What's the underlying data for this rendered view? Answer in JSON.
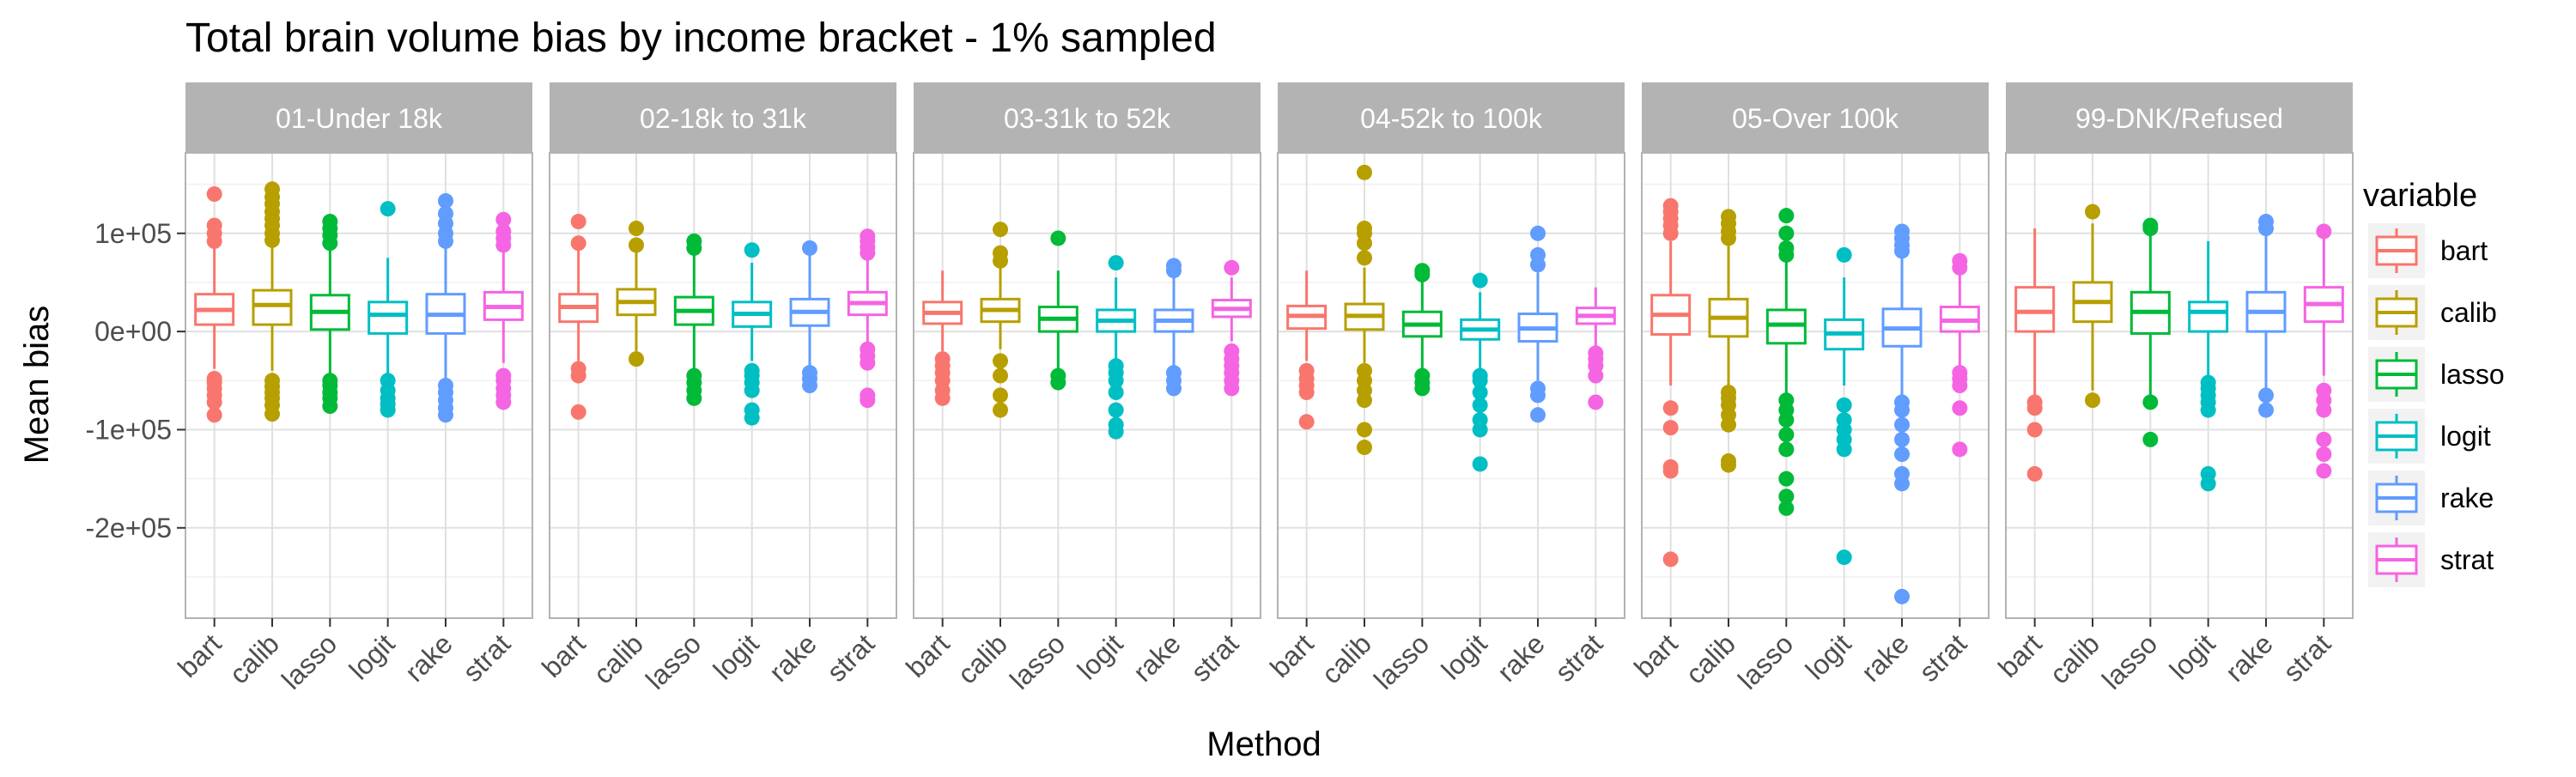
{
  "chart_data": {
    "type": "box",
    "title": "Total brain volume bias by income bracket - 1% sampled",
    "xlabel": "Method",
    "ylabel": "Mean bias",
    "ylim": [
      -292000,
      182000
    ],
    "yticks": [
      {
        "value": 100000,
        "label": "1e+05"
      },
      {
        "value": 0,
        "label": "0e+00"
      },
      {
        "value": -100000,
        "label": "-1e+05"
      },
      {
        "value": -200000,
        "label": "-2e+05"
      }
    ],
    "grid": true,
    "legend_title": "variable",
    "legend_position": "right",
    "categories": [
      "bart",
      "calib",
      "lasso",
      "logit",
      "rake",
      "strat"
    ],
    "colors": {
      "bart": "#F8766D",
      "calib": "#B79F00",
      "lasso": "#00BA38",
      "logit": "#00BFC4",
      "rake": "#619CFF",
      "strat": "#F564E3"
    },
    "facets": [
      {
        "label": "01-Under 18k",
        "boxes": [
          {
            "method": "bart",
            "q1": 7000,
            "median": 22000,
            "q3": 38000,
            "wlo": -38000,
            "whi": 85000,
            "outliers": [
              -85000,
              -72000,
              -65000,
              -58000,
              -52000,
              -48000,
              92000,
              100000,
              108000,
              140000
            ]
          },
          {
            "method": "calib",
            "q1": 7000,
            "median": 27000,
            "q3": 42000,
            "wlo": -40000,
            "whi": 88000,
            "outliers": [
              -84000,
              -75000,
              -68000,
              -62000,
              -56000,
              -50000,
              93000,
              100000,
              108000,
              115000,
              122000,
              130000,
              137000,
              145000
            ]
          },
          {
            "method": "lasso",
            "q1": 2000,
            "median": 20000,
            "q3": 37000,
            "wlo": -45000,
            "whi": 83000,
            "outliers": [
              -76000,
              -68000,
              -62000,
              -55000,
              -50000,
              90000,
              98000,
              105000,
              112000
            ]
          },
          {
            "method": "logit",
            "q1": -2000,
            "median": 17000,
            "q3": 30000,
            "wlo": -45000,
            "whi": 75000,
            "outliers": [
              -80000,
              -74000,
              -68000,
              -60000,
              -50000,
              125000
            ]
          },
          {
            "method": "rake",
            "q1": -2000,
            "median": 17000,
            "q3": 38000,
            "wlo": -50000,
            "whi": 85000,
            "outliers": [
              -85000,
              -78000,
              -70000,
              -62000,
              -55000,
              92000,
              100000,
              110000,
              120000,
              133000
            ]
          },
          {
            "method": "strat",
            "q1": 12000,
            "median": 25000,
            "q3": 40000,
            "wlo": -32000,
            "whi": 82000,
            "outliers": [
              -72000,
              -65000,
              -58000,
              -50000,
              -45000,
              88000,
              95000,
              102000,
              114000
            ]
          }
        ]
      },
      {
        "label": "02-18k to 31k",
        "boxes": [
          {
            "method": "bart",
            "q1": 10000,
            "median": 25000,
            "q3": 38000,
            "wlo": -30000,
            "whi": 85000,
            "outliers": [
              -82000,
              -45000,
              -38000,
              90000,
              112000
            ]
          },
          {
            "method": "calib",
            "q1": 17000,
            "median": 30000,
            "q3": 43000,
            "wlo": -20000,
            "whi": 85000,
            "outliers": [
              -28000,
              88000,
              105000
            ]
          },
          {
            "method": "lasso",
            "q1": 7000,
            "median": 21000,
            "q3": 35000,
            "wlo": -38000,
            "whi": 78000,
            "outliers": [
              -68000,
              -60000,
              -52000,
              -45000,
              85000,
              92000
            ]
          },
          {
            "method": "logit",
            "q1": 5000,
            "median": 18000,
            "q3": 30000,
            "wlo": -30000,
            "whi": 70000,
            "outliers": [
              -88000,
              -80000,
              -60000,
              -52000,
              -45000,
              -40000,
              83000
            ]
          },
          {
            "method": "rake",
            "q1": 6000,
            "median": 20000,
            "q3": 33000,
            "wlo": -38000,
            "whi": 78000,
            "outliers": [
              -55000,
              -48000,
              -42000,
              85000
            ]
          },
          {
            "method": "strat",
            "q1": 17000,
            "median": 29000,
            "q3": 40000,
            "wlo": -15000,
            "whi": 75000,
            "outliers": [
              -70000,
              -65000,
              -32000,
              -25000,
              -18000,
              80000,
              86000,
              92000,
              97000
            ]
          }
        ]
      },
      {
        "label": "03-31k to 52k",
        "boxes": [
          {
            "method": "bart",
            "q1": 8000,
            "median": 19000,
            "q3": 30000,
            "wlo": -20000,
            "whi": 62000,
            "outliers": [
              -68000,
              -60000,
              -50000,
              -42000,
              -35000,
              -28000
            ]
          },
          {
            "method": "calib",
            "q1": 10000,
            "median": 22000,
            "q3": 33000,
            "wlo": -18000,
            "whi": 65000,
            "outliers": [
              -80000,
              -65000,
              -45000,
              -30000,
              72000,
              80000,
              104000
            ]
          },
          {
            "method": "lasso",
            "q1": 0,
            "median": 13000,
            "q3": 25000,
            "wlo": -38000,
            "whi": 62000,
            "outliers": [
              -52000,
              -45000,
              95000
            ]
          },
          {
            "method": "logit",
            "q1": 0,
            "median": 11000,
            "q3": 22000,
            "wlo": -32000,
            "whi": 55000,
            "outliers": [
              -102000,
              -95000,
              -80000,
              -62000,
              -50000,
              -42000,
              -35000,
              70000
            ]
          },
          {
            "method": "rake",
            "q1": 0,
            "median": 11000,
            "q3": 22000,
            "wlo": -35000,
            "whi": 58000,
            "outliers": [
              -58000,
              -50000,
              -42000,
              62000,
              67000
            ]
          },
          {
            "method": "strat",
            "q1": 15000,
            "median": 23000,
            "q3": 32000,
            "wlo": -10000,
            "whi": 55000,
            "outliers": [
              -58000,
              -50000,
              -42000,
              -35000,
              -28000,
              -20000,
              65000
            ]
          }
        ]
      },
      {
        "label": "04-52k to 100k",
        "boxes": [
          {
            "method": "bart",
            "q1": 3000,
            "median": 16000,
            "q3": 26000,
            "wlo": -30000,
            "whi": 62000,
            "outliers": [
              -92000,
              -62000,
              -55000,
              -48000,
              -40000
            ]
          },
          {
            "method": "calib",
            "q1": 2000,
            "median": 16000,
            "q3": 28000,
            "wlo": -32000,
            "whi": 65000,
            "outliers": [
              -118000,
              -100000,
              -70000,
              -60000,
              -50000,
              -40000,
              75000,
              90000,
              100000,
              105000,
              162000
            ]
          },
          {
            "method": "lasso",
            "q1": -5000,
            "median": 7000,
            "q3": 20000,
            "wlo": -40000,
            "whi": 55000,
            "outliers": [
              -58000,
              -52000,
              -45000,
              58000,
              62000
            ]
          },
          {
            "method": "logit",
            "q1": -8000,
            "median": 2000,
            "q3": 12000,
            "wlo": -40000,
            "whi": 40000,
            "outliers": [
              -135000,
              -100000,
              -90000,
              -75000,
              -62000,
              -50000,
              -45000,
              52000
            ]
          },
          {
            "method": "rake",
            "q1": -10000,
            "median": 3000,
            "q3": 18000,
            "wlo": -50000,
            "whi": 60000,
            "outliers": [
              -85000,
              -65000,
              -58000,
              68000,
              78000,
              100000
            ]
          },
          {
            "method": "strat",
            "q1": 8000,
            "median": 16000,
            "q3": 24000,
            "wlo": -15000,
            "whi": 45000,
            "outliers": [
              -72000,
              -45000,
              -35000,
              -28000,
              -22000
            ]
          }
        ]
      },
      {
        "label": "05-Over 100k",
        "boxes": [
          {
            "method": "bart",
            "q1": -3000,
            "median": 17000,
            "q3": 37000,
            "wlo": -55000,
            "whi": 92000,
            "outliers": [
              -232000,
              -142000,
              -138000,
              -98000,
              -78000,
              100000,
              108000,
              115000,
              122000,
              128000
            ]
          },
          {
            "method": "calib",
            "q1": -5000,
            "median": 14000,
            "q3": 33000,
            "wlo": -55000,
            "whi": 88000,
            "outliers": [
              -136000,
              -132000,
              -95000,
              -85000,
              -75000,
              -68000,
              -62000,
              95000,
              102000,
              110000,
              117000
            ]
          },
          {
            "method": "lasso",
            "q1": -12000,
            "median": 7000,
            "q3": 22000,
            "wlo": -65000,
            "whi": 75000,
            "outliers": [
              -180000,
              -168000,
              -150000,
              -120000,
              -105000,
              -90000,
              -80000,
              -70000,
              78000,
              85000,
              100000,
              118000
            ]
          },
          {
            "method": "logit",
            "q1": -18000,
            "median": -2000,
            "q3": 12000,
            "wlo": -55000,
            "whi": 55000,
            "outliers": [
              -230000,
              -120000,
              -110000,
              -100000,
              -90000,
              -75000,
              78000
            ]
          },
          {
            "method": "rake",
            "q1": -15000,
            "median": 3000,
            "q3": 23000,
            "wlo": -65000,
            "whi": 75000,
            "outliers": [
              -270000,
              -155000,
              -145000,
              -125000,
              -110000,
              -95000,
              -80000,
              -72000,
              82000,
              88000,
              95000,
              102000
            ]
          },
          {
            "method": "strat",
            "q1": 0,
            "median": 11000,
            "q3": 25000,
            "wlo": -38000,
            "whi": 60000,
            "outliers": [
              -120000,
              -78000,
              -55000,
              -48000,
              -42000,
              65000,
              72000
            ]
          }
        ]
      },
      {
        "label": "99-DNK/Refused",
        "boxes": [
          {
            "method": "bart",
            "q1": 0,
            "median": 20000,
            "q3": 45000,
            "wlo": -68000,
            "whi": 105000,
            "outliers": [
              -145000,
              -100000,
              -78000,
              -72000
            ]
          },
          {
            "method": "calib",
            "q1": 10000,
            "median": 30000,
            "q3": 50000,
            "wlo": -60000,
            "whi": 110000,
            "outliers": [
              -70000,
              122000
            ]
          },
          {
            "method": "lasso",
            "q1": -2000,
            "median": 20000,
            "q3": 40000,
            "wlo": -65000,
            "whi": 100000,
            "outliers": [
              -110000,
              -72000,
              105000,
              108000
            ]
          },
          {
            "method": "logit",
            "q1": 0,
            "median": 20000,
            "q3": 30000,
            "wlo": -45000,
            "whi": 92000,
            "outliers": [
              -155000,
              -145000,
              -80000,
              -72000,
              -65000,
              -58000,
              -52000
            ]
          },
          {
            "method": "rake",
            "q1": 0,
            "median": 20000,
            "q3": 40000,
            "wlo": -58000,
            "whi": 100000,
            "outliers": [
              -80000,
              -65000,
              105000,
              112000
            ]
          },
          {
            "method": "strat",
            "q1": 10000,
            "median": 28000,
            "q3": 45000,
            "wlo": -45000,
            "whi": 95000,
            "outliers": [
              -142000,
              -125000,
              -110000,
              -80000,
              -70000,
              -60000,
              102000
            ]
          }
        ]
      }
    ]
  }
}
